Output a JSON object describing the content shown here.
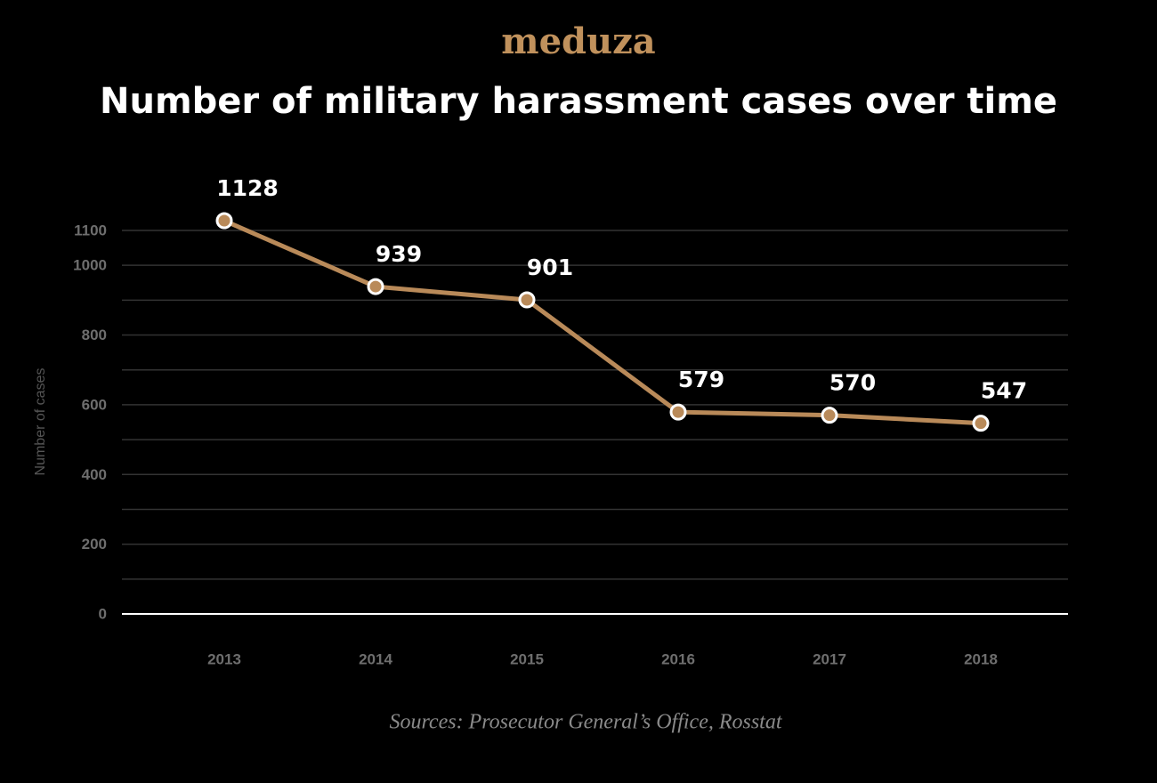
{
  "chart_data": {
    "type": "line",
    "brand": "meduza",
    "title": "Number of military harassment cases over time",
    "y_label": "Number of cases",
    "source": "Sources: Prosecutor General’s Office, Rosstat",
    "categories": [
      "2013",
      "2014",
      "2015",
      "2016",
      "2017",
      "2018"
    ],
    "series": [
      {
        "name": "Cases",
        "color": "#b98a59",
        "values": [
          1128,
          939,
          901,
          579,
          570,
          547
        ]
      }
    ],
    "ylim": [
      0,
      1100
    ],
    "yticks": [
      0,
      200,
      400,
      600,
      800,
      1000,
      1100
    ],
    "minor_yticks": [
      100,
      300,
      500,
      700,
      900
    ],
    "grid": true
  }
}
